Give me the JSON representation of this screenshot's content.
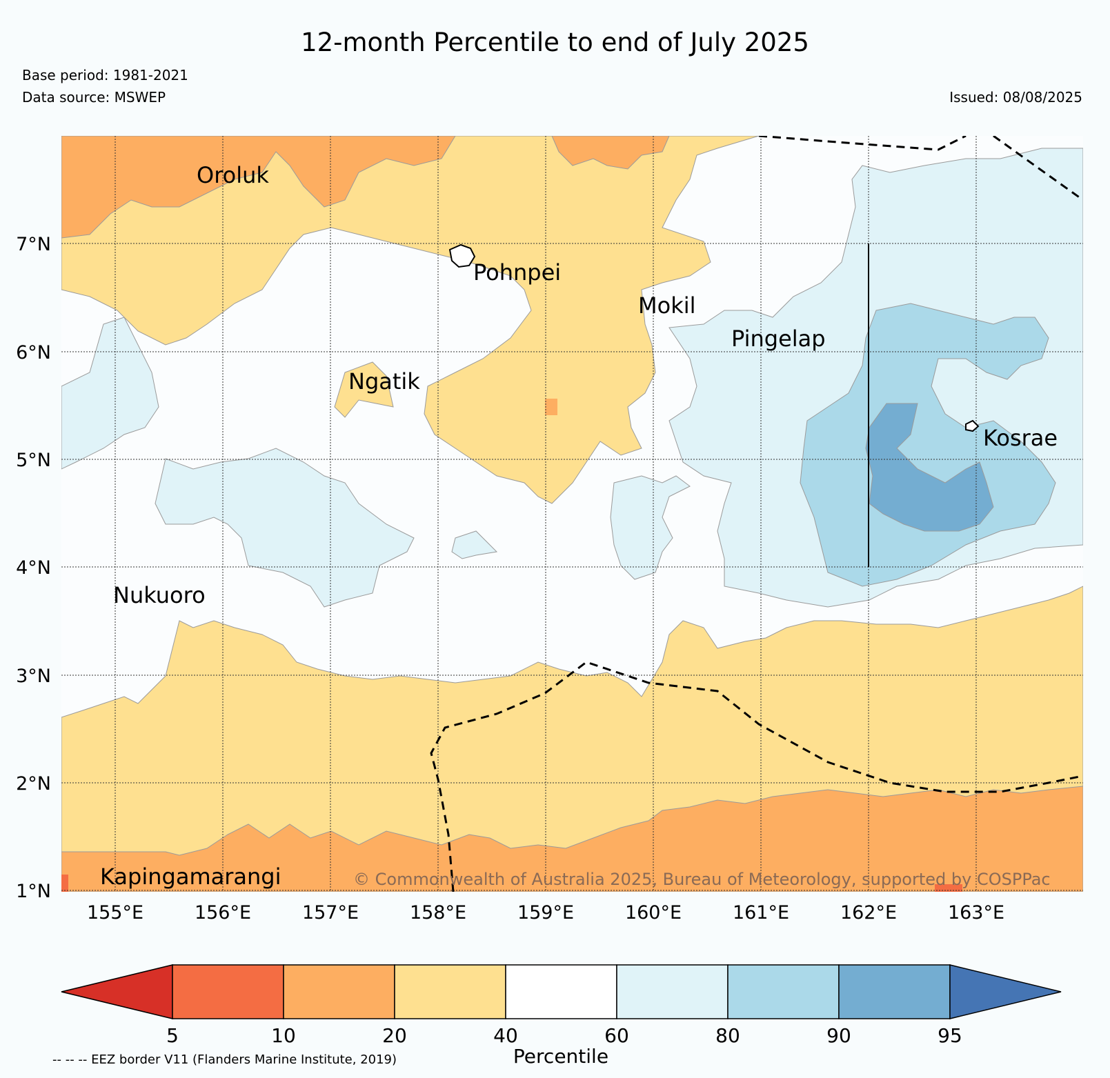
{
  "header": {
    "title": "12-month Percentile to end of July 2025",
    "base_period": "Base period: 1981-2021",
    "data_source": "Data source: MSWEP",
    "issued": "Issued: 08/08/2025"
  },
  "axes": {
    "x_ticks": [
      "155°E",
      "156°E",
      "157°E",
      "158°E",
      "159°E",
      "160°E",
      "161°E",
      "162°E",
      "163°E"
    ],
    "y_ticks": [
      "7°N",
      "6°N",
      "5°N",
      "4°N",
      "3°N",
      "2°N",
      "1°N"
    ]
  },
  "places": [
    {
      "name": "Oroluk"
    },
    {
      "name": "Pohnpei"
    },
    {
      "name": "Mokil"
    },
    {
      "name": "Pingelap"
    },
    {
      "name": "Ngatik"
    },
    {
      "name": "Kosrae"
    },
    {
      "name": "Nukuoro"
    },
    {
      "name": "Kapingamarangi"
    }
  ],
  "copyright": "© Commonwealth of Australia 2025, Bureau of Meteorology, supported by COSPPac",
  "colorbar": {
    "title": "Percentile",
    "ticks": [
      "5",
      "10",
      "20",
      "40",
      "60",
      "80",
      "90",
      "95"
    ],
    "colors": [
      "#d73027",
      "#f46d43",
      "#fdae61",
      "#fee090",
      "#ffffff",
      "#e0f3f8",
      "#abd9e9",
      "#74add1",
      "#4575b4"
    ]
  },
  "legend_note": "-- -- -- EEZ border V11 (Flanders Marine Institute, 2019)"
}
